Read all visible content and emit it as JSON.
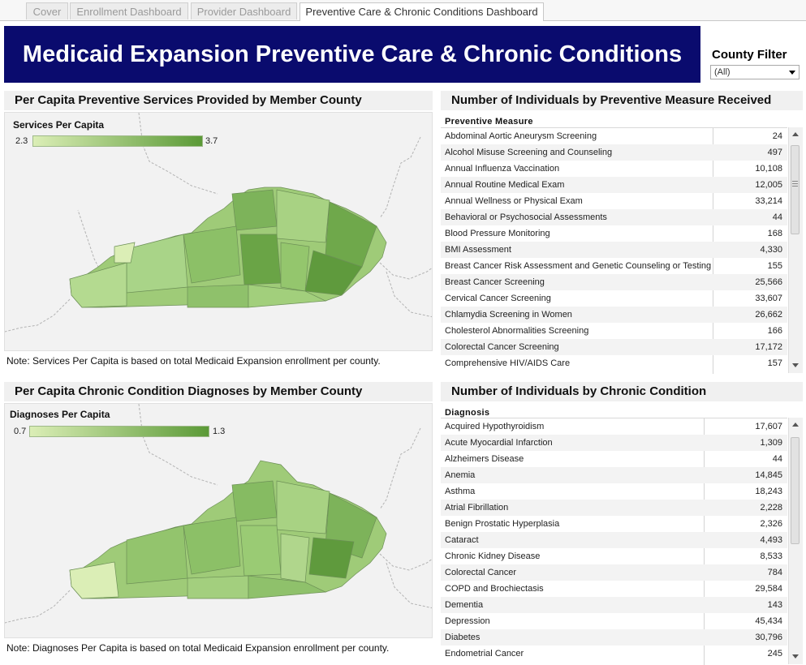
{
  "tabs": [
    {
      "label": "Cover"
    },
    {
      "label": "Enrollment Dashboard"
    },
    {
      "label": "Provider Dashboard"
    },
    {
      "label": "Preventive Care & Chronic Conditions Dashboard"
    }
  ],
  "header": {
    "title": "Medicaid Expansion Preventive Care & Chronic Conditions"
  },
  "county_filter": {
    "label": "County Filter",
    "value": "(All)"
  },
  "preventive_map": {
    "title": "Per Capita Preventive Services Provided by Member County",
    "legend_title": "Services Per Capita",
    "legend_min": "2.3",
    "legend_max": "3.7",
    "color_low": "#dbeeb6",
    "color_high": "#5b9a37",
    "note": "Note: Services Per Capita is based on total Medicaid Expansion enrollment per county."
  },
  "chronic_map": {
    "title": "Per Capita Chronic Condition Diagnoses by Member County",
    "legend_title": "Diagnoses Per Capita",
    "legend_min": "0.7",
    "legend_max": "1.3",
    "color_low": "#dbeeb6",
    "color_high": "#5b9a37",
    "note": "Note: Diagnoses Per Capita is based on total Medicaid Expansion enrollment per county."
  },
  "preventive_table": {
    "title": "Number of Individuals by Preventive Measure Received",
    "column_header": "Preventive Measure",
    "rows": [
      {
        "label": "Abdominal Aortic Aneurysm Screening",
        "value": "24"
      },
      {
        "label": "Alcohol Misuse Screening and Counseling",
        "value": "497"
      },
      {
        "label": "Annual Influenza Vaccination",
        "value": "10,108"
      },
      {
        "label": "Annual Routine Medical Exam",
        "value": "12,005"
      },
      {
        "label": "Annual Wellness or Physical Exam",
        "value": "33,214"
      },
      {
        "label": "Behavioral or Psychosocial Assessments",
        "value": "44"
      },
      {
        "label": "Blood Pressure Monitoring",
        "value": "168"
      },
      {
        "label": "BMI Assessment",
        "value": "4,330"
      },
      {
        "label": "Breast Cancer Risk Assessment and Genetic Counseling or Testing",
        "value": "155"
      },
      {
        "label": "Breast Cancer Screening",
        "value": "25,566"
      },
      {
        "label": "Cervical Cancer Screening",
        "value": "33,607"
      },
      {
        "label": "Chlamydia Screening in Women",
        "value": "26,662"
      },
      {
        "label": "Cholesterol Abnormalities Screening",
        "value": "166"
      },
      {
        "label": "Colorectal Cancer Screening",
        "value": "17,172"
      },
      {
        "label": "Comprehensive HIV/AIDS Care",
        "value": "157"
      }
    ]
  },
  "chronic_table": {
    "title": "Number of Individuals by Chronic Condition",
    "column_header": "Diagnosis",
    "rows": [
      {
        "label": "Acquired Hypothyroidism",
        "value": "17,607"
      },
      {
        "label": "Acute Myocardial Infarction",
        "value": "1,309"
      },
      {
        "label": "Alzheimers Disease",
        "value": "44"
      },
      {
        "label": "Anemia",
        "value": "14,845"
      },
      {
        "label": "Asthma",
        "value": "18,243"
      },
      {
        "label": "Atrial Fibrillation",
        "value": "2,228"
      },
      {
        "label": "Benign Prostatic Hyperplasia",
        "value": "2,326"
      },
      {
        "label": "Cataract",
        "value": "4,493"
      },
      {
        "label": "Chronic Kidney Disease",
        "value": "8,533"
      },
      {
        "label": "Colorectal Cancer",
        "value": "784"
      },
      {
        "label": "COPD and Brochiectasis",
        "value": "29,584"
      },
      {
        "label": "Dementia",
        "value": "143"
      },
      {
        "label": "Depression",
        "value": "45,434"
      },
      {
        "label": "Diabetes",
        "value": "30,796"
      },
      {
        "label": "Endometrial Cancer",
        "value": "245"
      }
    ]
  }
}
